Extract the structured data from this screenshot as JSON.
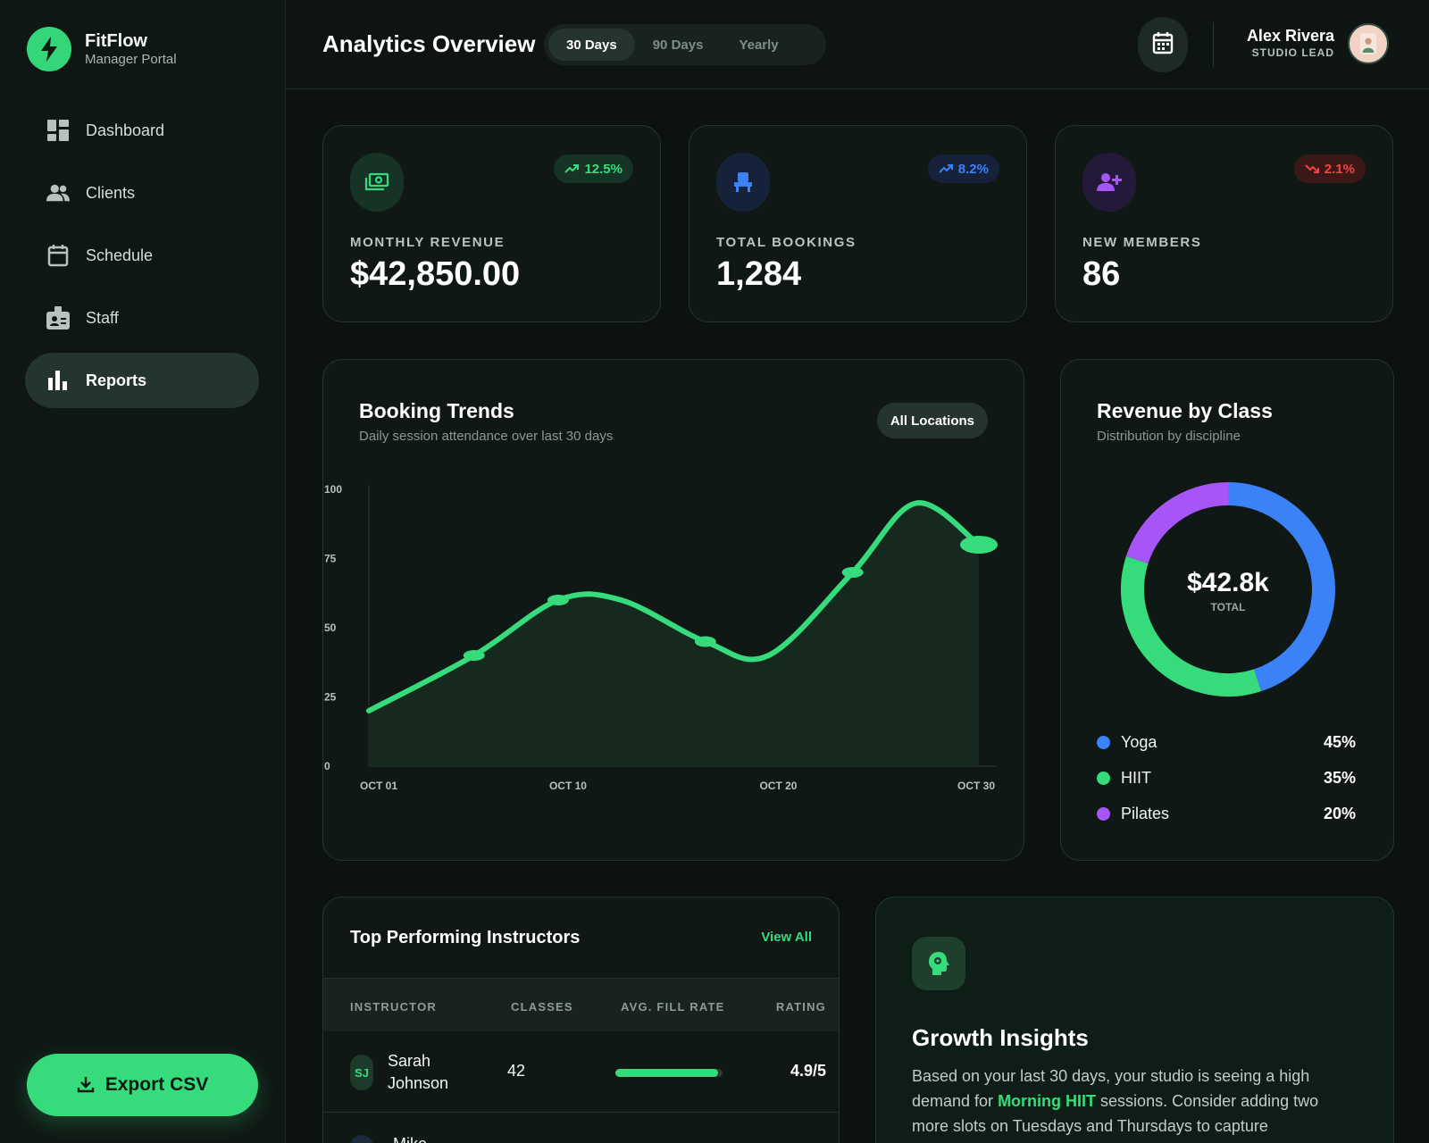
{
  "brand": {
    "name": "FitFlow",
    "subtitle": "Manager Portal"
  },
  "sidebar": {
    "items": [
      {
        "label": "Dashboard",
        "icon": "dashboard-icon"
      },
      {
        "label": "Clients",
        "icon": "users-icon"
      },
      {
        "label": "Schedule",
        "icon": "calendar-icon"
      },
      {
        "label": "Staff",
        "icon": "badge-icon"
      },
      {
        "label": "Reports",
        "icon": "bar-chart-icon",
        "active": true
      }
    ],
    "export_label": "Export CSV"
  },
  "header": {
    "title": "Analytics Overview",
    "ranges": [
      "30 Days",
      "90 Days",
      "Yearly"
    ],
    "active_range": "30 Days",
    "user_name": "Alex Rivera",
    "user_role": "STUDIO LEAD"
  },
  "stats": [
    {
      "label": "MONTHLY REVENUE",
      "value": "$42,850.00",
      "change": "12.5%",
      "trend": "up",
      "color": "#36dc7c",
      "icon": "cash-icon"
    },
    {
      "label": "TOTAL BOOKINGS",
      "value": "1,284",
      "change": "8.2%",
      "trend": "up",
      "color": "#3b82f6",
      "icon": "seat-icon"
    },
    {
      "label": "NEW MEMBERS",
      "value": "86",
      "change": "2.1%",
      "trend": "down",
      "color": "#ef4444",
      "icon": "add-user-icon"
    }
  ],
  "booking_trends": {
    "title": "Booking Trends",
    "subtitle": "Daily session attendance over last 30 days",
    "filter_label": "All Locations"
  },
  "revenue_by_class": {
    "title": "Revenue by Class",
    "subtitle": "Distribution by discipline",
    "total": "$42.8k",
    "total_label": "TOTAL",
    "classes": [
      {
        "name": "Yoga",
        "pct": "45%",
        "value": 45,
        "color": "#3b82f6"
      },
      {
        "name": "HIIT",
        "pct": "35%",
        "value": 35,
        "color": "#36dc7c"
      },
      {
        "name": "Pilates",
        "pct": "20%",
        "value": 20,
        "color": "#a855f7"
      }
    ]
  },
  "chart_data": [
    {
      "type": "area",
      "title": "Booking Trends",
      "x": [
        "OCT 01",
        "OCT 06",
        "OCT 10",
        "OCT 13",
        "OCT 17",
        "OCT 20",
        "OCT 24",
        "OCT 27",
        "OCT 30"
      ],
      "values": [
        20,
        40,
        60,
        60,
        45,
        40,
        70,
        95,
        80
      ],
      "xticks": [
        "OCT 01",
        "OCT 10",
        "OCT 20",
        "OCT 30"
      ],
      "yticks": [
        0,
        25,
        50,
        75,
        100
      ],
      "ylim": [
        0,
        100
      ],
      "grid": false,
      "color": "#36dc7c"
    },
    {
      "type": "pie",
      "title": "Revenue by Class",
      "categories": [
        "Yoga",
        "HIIT",
        "Pilates"
      ],
      "values": [
        45,
        35,
        20
      ]
    }
  ],
  "instructors": {
    "title": "Top Performing Instructors",
    "view_all": "View All",
    "columns": [
      "INSTRUCTOR",
      "CLASSES",
      "AVG. FILL RATE",
      "RATING"
    ],
    "rows": [
      {
        "initials": "SJ",
        "name": "Sarah Johnson",
        "classes": "42",
        "fill_rate": 0.96,
        "rating": "4.9/5"
      },
      {
        "initials": "",
        "name": "Mike",
        "classes": "",
        "fill_rate": null,
        "rating": ""
      }
    ]
  },
  "insights": {
    "title": "Growth Insights",
    "body_pre": "Based on your last 30 days, your studio is seeing a high demand for ",
    "highlight": "Morning HIIT",
    "body_post": " sessions. Consider adding two more slots on Tuesdays and Thursdays to capture approximately"
  }
}
